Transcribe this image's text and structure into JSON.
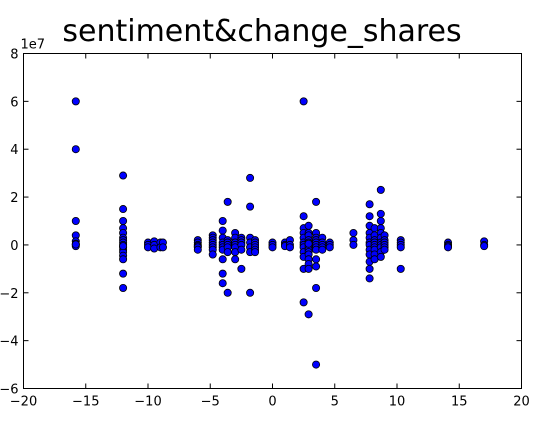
{
  "chart_data": {
    "type": "scatter",
    "title": "sentiment&change_shares",
    "xlabel": "",
    "ylabel": "",
    "xlim": [
      -20,
      20
    ],
    "ylim": [
      -60000000,
      80000000
    ],
    "xticks": [
      -20,
      -15,
      -10,
      -5,
      0,
      5,
      10,
      15,
      20
    ],
    "xtick_labels": [
      "−20",
      "−15",
      "−10",
      "−5",
      "0",
      "5",
      "10",
      "15",
      "20"
    ],
    "yticks": [
      -60000000,
      -40000000,
      -20000000,
      0,
      20000000,
      40000000,
      60000000,
      80000000
    ],
    "ytick_labels": [
      "−6",
      "−4",
      "−2",
      "0",
      "2",
      "4",
      "6",
      "8"
    ],
    "y_offset_label": "1e7",
    "grid": false,
    "colors": {
      "marker": "#0000ff",
      "edge": "#000000"
    },
    "series": [
      {
        "x": [
          -15.8,
          -15.8,
          -15.8,
          -15.8,
          -15.8,
          -15.8,
          -15.8,
          -15.8,
          -15.8,
          -12.0,
          -12.0,
          -12.0,
          -12.0,
          -12.0,
          -12.0,
          -12.0,
          -12.0,
          -12.0,
          -12.0,
          -12.0,
          -12.0,
          -12.0,
          -12.0,
          -12.0,
          -12.0,
          -12.0,
          -10.0,
          -10.0,
          -10.0,
          -9.5,
          -9.5,
          -9.5,
          -9.0,
          -9.0,
          -8.8,
          -8.8,
          -6.0,
          -6.0,
          -6.0,
          -6.0,
          -6.0,
          -6.0,
          -4.8,
          -4.8,
          -4.8,
          -4.8,
          -4.8,
          -4.8,
          -4.8,
          -4.8,
          -4.0,
          -4.0,
          -4.0,
          -4.0,
          -4.0,
          -4.0,
          -4.0,
          -4.0,
          -4.0,
          -4.0,
          -3.6,
          -3.6,
          -3.6,
          -3.6,
          -3.6,
          -3.6,
          -3.6,
          -3.0,
          -3.0,
          -3.0,
          -3.0,
          -3.0,
          -3.0,
          -3.0,
          -2.5,
          -2.5,
          -2.5,
          -2.5,
          -2.5,
          -2.5,
          -1.8,
          -1.8,
          -1.8,
          -1.8,
          -1.8,
          -1.8,
          -1.8,
          -1.4,
          -1.4,
          -1.4,
          -1.4,
          -1.4,
          -1.4,
          0.0,
          0.0,
          0.0,
          1.0,
          1.0,
          1.0,
          1.4,
          1.4,
          1.4,
          2.5,
          2.5,
          2.5,
          2.5,
          2.5,
          2.5,
          2.5,
          2.5,
          2.5,
          2.5,
          2.5,
          2.5,
          2.9,
          2.9,
          2.9,
          2.9,
          2.9,
          2.9,
          2.9,
          2.9,
          2.9,
          2.9,
          2.9,
          2.9,
          2.9,
          2.9,
          2.9,
          3.5,
          3.5,
          3.5,
          3.5,
          3.5,
          3.5,
          3.5,
          3.5,
          3.5,
          3.5,
          3.5,
          3.5,
          4.0,
          4.0,
          4.0,
          4.0,
          4.0,
          4.6,
          4.6,
          4.6,
          6.5,
          6.5,
          6.5,
          7.8,
          7.8,
          7.8,
          7.8,
          7.8,
          7.8,
          7.8,
          7.8,
          7.8,
          7.8,
          7.8,
          7.8,
          8.2,
          8.2,
          8.2,
          8.2,
          8.2,
          8.2,
          8.2,
          8.2,
          8.2,
          8.7,
          8.7,
          8.7,
          8.7,
          8.7,
          8.7,
          8.7,
          8.7,
          8.7,
          8.7,
          8.7,
          9.0,
          9.0,
          9.0,
          9.0,
          9.0,
          9.0,
          10.3,
          10.3,
          10.3,
          10.3,
          10.3,
          14.1,
          14.1,
          14.1,
          14.1,
          17.0,
          17.0,
          17.0
        ],
        "y": [
          60000000,
          40000000,
          10000000,
          4000000,
          1500000,
          500000,
          0,
          -500000,
          200000,
          29000000,
          15000000,
          10000000,
          7000000,
          5000000,
          3000000,
          2000000,
          1000000,
          0,
          -1000000,
          -2000000,
          -3000000,
          -4500000,
          -6000000,
          -12000000,
          -18000000,
          -500000,
          1000000,
          0,
          -1000000,
          1500000,
          0,
          -1500000,
          1000000,
          -1000000,
          1000000,
          -1000000,
          2000000,
          1000000,
          0,
          -500000,
          -1000000,
          -2000000,
          4000000,
          3000000,
          2000000,
          1000000,
          0,
          -1000000,
          -2000000,
          -4000000,
          10000000,
          6000000,
          3000000,
          1000000,
          0,
          -1000000,
          -2000000,
          -6000000,
          -12000000,
          -16000000,
          18000000,
          2000000,
          1000000,
          0,
          -1000000,
          -3000000,
          -20000000,
          5000000,
          3000000,
          1000000,
          0,
          -1000000,
          -3000000,
          -6000000,
          3000000,
          2000000,
          1000000,
          0,
          -2000000,
          -10000000,
          28000000,
          16000000,
          3000000,
          1000000,
          -1000000,
          -3000000,
          -20000000,
          2000000,
          1000000,
          0,
          -1000000,
          -2000000,
          -3000000,
          1000000,
          0,
          -1000000,
          1000000,
          0,
          -500000,
          2000000,
          0,
          -1000000,
          60000000,
          12000000,
          7000000,
          5000000,
          3000000,
          1000000,
          0,
          -1000000,
          -3000000,
          -5000000,
          -10000000,
          -24000000,
          8000000,
          5000000,
          4000000,
          2000000,
          1000000,
          0,
          -1000000,
          -2000000,
          -3000000,
          -4000000,
          -6000000,
          -8000000,
          -10000000,
          -29000000,
          500000,
          18000000,
          5000000,
          3000000,
          2000000,
          1000000,
          0,
          -1000000,
          -2000000,
          -6000000,
          -9000000,
          -18000000,
          -50000000,
          3000000,
          1000000,
          0,
          -1000000,
          -2000000,
          1000000,
          0,
          -1000000,
          5000000,
          2000000,
          0,
          17000000,
          12000000,
          8000000,
          5000000,
          3000000,
          1000000,
          0,
          -2000000,
          -4000000,
          -7000000,
          -10000000,
          -14000000,
          7000000,
          4000000,
          2000000,
          1000000,
          0,
          -1000000,
          -2000000,
          -4000000,
          -6000000,
          23000000,
          13000000,
          10000000,
          7000000,
          5000000,
          3000000,
          1000000,
          0,
          -1000000,
          -3000000,
          -5000000,
          4000000,
          2000000,
          1000000,
          0,
          -1000000,
          -2000000,
          2000000,
          1000000,
          0,
          -1000000,
          -10000000,
          1000000,
          0,
          -500000,
          -1000000,
          1500000,
          0,
          -500000
        ]
      }
    ]
  }
}
